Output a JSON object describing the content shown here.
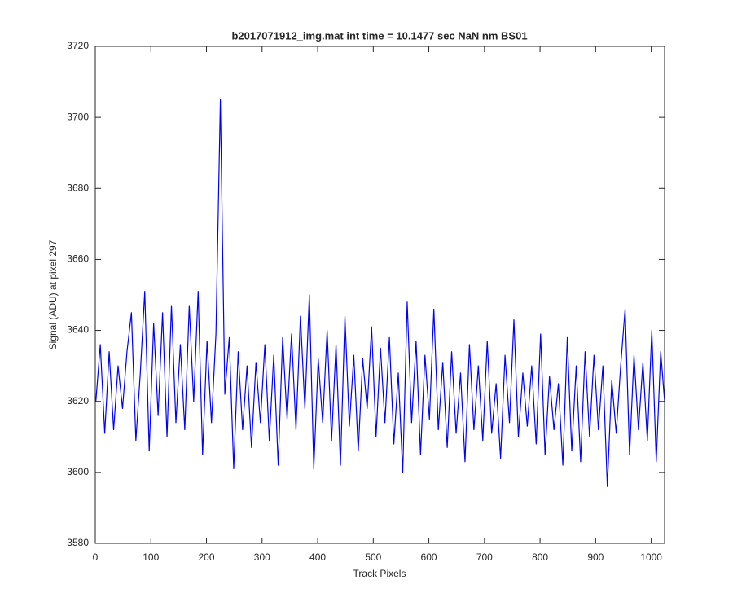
{
  "chart_data": {
    "type": "line",
    "title": "b2017071912_img.mat int time = 10.1477 sec  NaN nm BS01",
    "x_label": "Track Pixels",
    "y_label": "Signal (ADU) at pixel 297",
    "x": [
      1,
      9,
      17,
      25,
      33,
      41,
      49,
      57,
      65,
      73,
      81,
      89,
      97,
      105,
      113,
      121,
      129,
      137,
      145,
      153,
      161,
      169,
      177,
      185,
      193,
      201,
      209,
      217,
      225,
      233,
      241,
      249,
      257,
      265,
      273,
      281,
      289,
      297,
      305,
      313,
      321,
      329,
      337,
      345,
      353,
      361,
      369,
      377,
      385,
      393,
      401,
      409,
      417,
      425,
      433,
      441,
      449,
      457,
      465,
      473,
      481,
      489,
      497,
      505,
      513,
      521,
      529,
      537,
      545,
      553,
      561,
      569,
      577,
      585,
      593,
      601,
      609,
      617,
      625,
      633,
      641,
      649,
      657,
      665,
      673,
      681,
      689,
      697,
      705,
      713,
      721,
      729,
      737,
      745,
      753,
      761,
      769,
      777,
      785,
      793,
      801,
      809,
      817,
      825,
      833,
      841,
      849,
      857,
      865,
      873,
      881,
      889,
      897,
      905,
      913,
      921,
      929,
      937,
      945,
      953,
      961,
      969,
      977,
      985,
      993,
      1001,
      1009,
      1017,
      1024
    ],
    "series": [
      {
        "name": "Signal",
        "color": "#0000ff",
        "values": [
          3620,
          3636,
          3611,
          3634,
          3612,
          3630,
          3618,
          3634,
          3645,
          3609,
          3628,
          3651,
          3606,
          3642,
          3616,
          3645,
          3610,
          3647,
          3614,
          3636,
          3612,
          3647,
          3620,
          3651,
          3605,
          3637,
          3614,
          3639,
          3705,
          3622,
          3638,
          3601,
          3634,
          3612,
          3630,
          3607,
          3631,
          3614,
          3636,
          3609,
          3633,
          3602,
          3638,
          3615,
          3639,
          3612,
          3644,
          3618,
          3650,
          3601,
          3632,
          3614,
          3640,
          3609,
          3636,
          3602,
          3644,
          3613,
          3633,
          3606,
          3632,
          3618,
          3641,
          3610,
          3635,
          3614,
          3638,
          3608,
          3628,
          3600,
          3648,
          3614,
          3637,
          3605,
          3633,
          3615,
          3646,
          3612,
          3631,
          3607,
          3634,
          3611,
          3628,
          3603,
          3636,
          3612,
          3630,
          3609,
          3637,
          3611,
          3625,
          3604,
          3633,
          3614,
          3643,
          3610,
          3628,
          3613,
          3630,
          3608,
          3639,
          3605,
          3627,
          3612,
          3625,
          3602,
          3638,
          3606,
          3630,
          3603,
          3634,
          3610,
          3633,
          3612,
          3630,
          3596,
          3626,
          3611,
          3630,
          3646,
          3605,
          3633,
          3612,
          3631,
          3609,
          3640,
          3603,
          3634,
          3620
        ]
      }
    ],
    "xlim": [
      0,
      1024
    ],
    "xticks": [
      0,
      100,
      200,
      300,
      400,
      500,
      600,
      700,
      800,
      900,
      1000
    ],
    "ylim": [
      3580,
      3720
    ],
    "yticks": [
      3580,
      3600,
      3620,
      3640,
      3660,
      3680,
      3700,
      3720
    ],
    "grid": false
  }
}
